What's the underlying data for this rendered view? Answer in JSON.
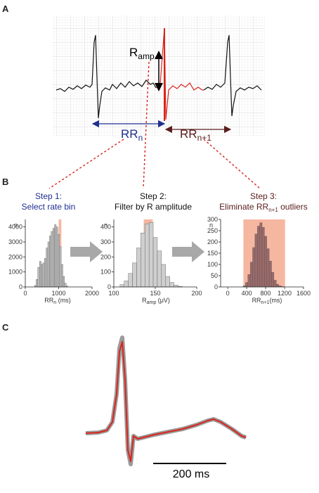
{
  "panels": {
    "a": "A",
    "b": "B",
    "c": "C"
  },
  "panel_a": {
    "r_amp_main": "R",
    "r_amp_sub": "amp",
    "rr_n_main": "RR",
    "rr_n_sub": "n",
    "rr_n1_main": "RR",
    "rr_n1_sub": "n+1",
    "colors": {
      "rr_n": "#1f2f8f",
      "rr_n1": "#5a1d1d",
      "highlight": "#d9241c"
    }
  },
  "steps": {
    "step1_title": "Step 1:",
    "step1_desc": "Select rate bin",
    "step2_title": "Step 2:",
    "step2_desc": "Filter by R amplitude",
    "step3_title": "Step 3:",
    "step3_desc_main": "Eliminate RR",
    "step3_desc_sub": "n+1",
    "step3_desc_tail": " outliers"
  },
  "hist_labels": {
    "h1_y": "n",
    "h1_x_main": "RR",
    "h1_x_sub": "n",
    "h1_x_tail": " (ms)",
    "h2_y": "n",
    "h2_x_main": "R",
    "h2_x_sub": "amp",
    "h2_x_tail": " (μV)",
    "h3_y": "n",
    "h3_x_main": "RR",
    "h3_x_sub": "n+1",
    "h3_x_tail": "(ms)"
  },
  "scale_bar": "200 ms",
  "chart_data": [
    {
      "type": "bar",
      "name_hint": "step1-histogram",
      "xlabel": "RRn (ms)",
      "ylabel": "n",
      "xlim": [
        0,
        2000
      ],
      "ylim": [
        0,
        4500
      ],
      "xticks": [
        "0",
        "1000",
        "2000"
      ],
      "yticks": [
        "0",
        "1000",
        "2000",
        "3000",
        "4000"
      ],
      "highlight_range": [
        1000,
        1080
      ],
      "bins_x": [
        300,
        350,
        400,
        450,
        500,
        550,
        600,
        650,
        700,
        750,
        800,
        850,
        900,
        950,
        1000,
        1050,
        1100,
        1150,
        1200,
        1250
      ],
      "values": [
        100,
        500,
        1300,
        1700,
        1500,
        1600,
        1900,
        2600,
        3000,
        3400,
        3700,
        3900,
        4150,
        4000,
        3500,
        2700,
        1500,
        700,
        250,
        60
      ]
    },
    {
      "type": "bar",
      "name_hint": "step2-histogram",
      "xlabel": "Ramp (μV)",
      "ylabel": "n",
      "xlim": [
        100,
        200
      ],
      "ylim": [
        0,
        450
      ],
      "xticks": [
        "100",
        "150",
        "200"
      ],
      "yticks": [
        "0",
        "100",
        "200",
        "300",
        "400"
      ],
      "highlight_range": [
        136,
        147
      ],
      "bins_x": [
        110,
        115,
        120,
        125,
        130,
        135,
        140,
        145,
        150,
        155,
        160,
        165,
        170,
        175,
        180
      ],
      "values": [
        15,
        40,
        90,
        160,
        260,
        360,
        420,
        430,
        330,
        240,
        150,
        70,
        30,
        12,
        4
      ]
    },
    {
      "type": "bar",
      "name_hint": "step3-histogram",
      "xlabel": "RRn+1(ms)",
      "ylabel": "n",
      "xlim": [
        -150,
        1600
      ],
      "ylim": [
        0,
        300
      ],
      "xticks": [
        "0",
        "400",
        "800",
        "1200",
        "1600"
      ],
      "yticks": [
        "0",
        "50",
        "100",
        "150",
        "200",
        "250",
        "300"
      ],
      "highlight_range": [
        330,
        1210
      ],
      "bins_x": [
        350,
        400,
        450,
        500,
        550,
        600,
        650,
        700,
        750,
        800,
        850,
        900,
        950,
        1000,
        1050,
        1100,
        1150
      ],
      "values": [
        5,
        20,
        55,
        110,
        175,
        235,
        270,
        285,
        265,
        225,
        170,
        115,
        65,
        30,
        12,
        5,
        2
      ]
    }
  ]
}
